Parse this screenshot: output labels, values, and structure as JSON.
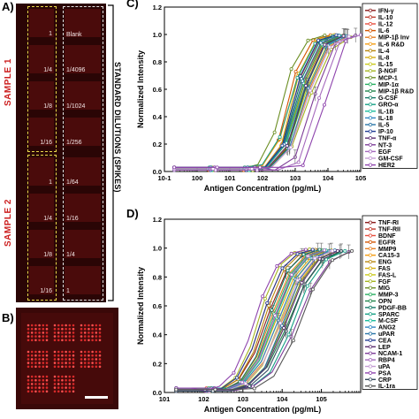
{
  "panels": {
    "a_label": "A)",
    "b_label": "B)",
    "c_label": "C)",
    "d_label": "D)"
  },
  "array_image": {
    "sample1": "SAMPLE 1",
    "sample2": "SAMPLE 2",
    "standard_dilutions": "STANDARD DILUTIONS (SPIKES)",
    "left_labels": [
      "1",
      "1/4",
      "1/8",
      "1/16",
      "1",
      "1/4",
      "1/8",
      "1/16"
    ],
    "right_labels": [
      "Blank",
      "1/4096",
      "1/1024",
      "1/256",
      "1/64",
      "1/16",
      "1/4",
      "1"
    ],
    "accent": "#cc1f1f"
  },
  "chart_data": [
    {
      "type": "line",
      "panel": "C",
      "xlabel": "Antigen Concentration (pg/mL)",
      "ylabel": "Normalized Intensity",
      "xscale": "log",
      "xlim": [
        0.1,
        100000
      ],
      "ylim": [
        0,
        1.2
      ],
      "xticks": [
        "10-1",
        "100",
        "101",
        "102",
        "103",
        "104",
        "105"
      ],
      "yticks": [
        "0.0",
        "0.2",
        "0.4",
        "0.6",
        "0.8",
        "1.0",
        "1.2"
      ],
      "legend_position": "right",
      "series": [
        {
          "name": "IFN-γ",
          "color": "#8b1a1a",
          "ec50": 1500,
          "slope": 1.6
        },
        {
          "name": "IL-10",
          "color": "#c0392b",
          "ec50": 900,
          "slope": 1.7
        },
        {
          "name": "IL-12",
          "color": "#e74c3c",
          "ec50": 1100,
          "slope": 1.5
        },
        {
          "name": "IL-6",
          "color": "#d35400",
          "ec50": 600,
          "slope": 1.8
        },
        {
          "name": "MIP-1β Inv",
          "color": "#e67e22",
          "ec50": 2000,
          "slope": 1.4
        },
        {
          "name": "IL-6 R&D",
          "color": "#f39c12",
          "ec50": 700,
          "slope": 1.6
        },
        {
          "name": "IL-4",
          "color": "#b8860b",
          "ec50": 1300,
          "slope": 1.5
        },
        {
          "name": "IL-8",
          "color": "#d4ac0d",
          "ec50": 800,
          "slope": 1.9
        },
        {
          "name": "IL-15",
          "color": "#c9c91a",
          "ec50": 1700,
          "slope": 1.4
        },
        {
          "name": "β-NGF",
          "color": "#a6b51f",
          "ec50": 2500,
          "slope": 1.3
        },
        {
          "name": "MCP-1",
          "color": "#6b8e23",
          "ec50": 400,
          "slope": 1.7
        },
        {
          "name": "MIP-1α",
          "color": "#27ae60",
          "ec50": 1200,
          "slope": 1.5
        },
        {
          "name": "MIP-1β R&D",
          "color": "#1e8449",
          "ec50": 1600,
          "slope": 1.6
        },
        {
          "name": "G-CSF",
          "color": "#117a65",
          "ec50": 1000,
          "slope": 1.7
        },
        {
          "name": "GRO-α",
          "color": "#16a085",
          "ec50": 700,
          "slope": 1.5
        },
        {
          "name": "IL-1B",
          "color": "#1abc9c",
          "ec50": 1400,
          "slope": 1.4
        },
        {
          "name": "IL-18",
          "color": "#2e86c1",
          "ec50": 1900,
          "slope": 1.5
        },
        {
          "name": "IL-5",
          "color": "#2874a6",
          "ec50": 1100,
          "slope": 1.6
        },
        {
          "name": "IP-10",
          "color": "#1f3a93",
          "ec50": 900,
          "slope": 1.8
        },
        {
          "name": "TNF-α",
          "color": "#5b2c6f",
          "ec50": 1500,
          "slope": 1.5
        },
        {
          "name": "NT-3",
          "color": "#7d3c98",
          "ec50": 3500,
          "slope": 1.7
        },
        {
          "name": "EGF",
          "color": "#a569bd",
          "ec50": 5000,
          "slope": 1.9
        },
        {
          "name": "GM-CSF",
          "color": "#c39bd3",
          "ec50": 2200,
          "slope": 1.4
        },
        {
          "name": "HER2",
          "color": "#8e44ad",
          "ec50": 8000,
          "slope": 2.0
        }
      ]
    },
    {
      "type": "line",
      "panel": "D",
      "xlabel": "Antigen Concentration (pg/mL)",
      "ylabel": "Normalized Intensity",
      "xscale": "log",
      "xlim": [
        1,
        100000
      ],
      "ylim": [
        0,
        1.2
      ],
      "xticks": [
        "101",
        "102",
        "103",
        "104",
        "105"
      ],
      "yticks": [
        "0.0",
        "0.2",
        "0.4",
        "0.6",
        "0.8",
        "1.0",
        "1.2"
      ],
      "legend_position": "right",
      "series": [
        {
          "name": "TNF-RI",
          "color": "#8b1a1a",
          "ec50": 400,
          "slope": 1.4
        },
        {
          "name": "TNF-RII",
          "color": "#c0392b",
          "ec50": 600,
          "slope": 1.3
        },
        {
          "name": "BDNF",
          "color": "#e74c3c",
          "ec50": 300,
          "slope": 1.5
        },
        {
          "name": "EGFR",
          "color": "#d35400",
          "ec50": 800,
          "slope": 1.3
        },
        {
          "name": "MMP9",
          "color": "#e67e22",
          "ec50": 500,
          "slope": 1.4
        },
        {
          "name": "CA15-3",
          "color": "#f39c12",
          "ec50": 1000,
          "slope": 1.2
        },
        {
          "name": "ENG",
          "color": "#b8860b",
          "ec50": 350,
          "slope": 1.5
        },
        {
          "name": "FAS",
          "color": "#d4ac0d",
          "ec50": 700,
          "slope": 1.3
        },
        {
          "name": "FAS-L",
          "color": "#c9c91a",
          "ec50": 900,
          "slope": 1.4
        },
        {
          "name": "FGF",
          "color": "#a6b51f",
          "ec50": 250,
          "slope": 1.6
        },
        {
          "name": "MIG",
          "color": "#6b8e23",
          "ec50": 1200,
          "slope": 1.3
        },
        {
          "name": "MMP-3",
          "color": "#27ae60",
          "ec50": 550,
          "slope": 1.4
        },
        {
          "name": "OPN",
          "color": "#1e8449",
          "ec50": 1500,
          "slope": 1.2
        },
        {
          "name": "PDGF-BB",
          "color": "#117a65",
          "ec50": 450,
          "slope": 1.5
        },
        {
          "name": "SPARC",
          "color": "#16a085",
          "ec50": 2000,
          "slope": 1.3
        },
        {
          "name": "M-CSF",
          "color": "#1abc9c",
          "ec50": 650,
          "slope": 1.4
        },
        {
          "name": "ANG2",
          "color": "#2e86c1",
          "ec50": 800,
          "slope": 1.3
        },
        {
          "name": "uPAR",
          "color": "#2874a6",
          "ec50": 1100,
          "slope": 1.4
        },
        {
          "name": "CEA",
          "color": "#1f3a93",
          "ec50": 300,
          "slope": 1.5
        },
        {
          "name": "LEP",
          "color": "#5b2c6f",
          "ec50": 1300,
          "slope": 1.3
        },
        {
          "name": "NCAM-1",
          "color": "#7d3c98",
          "ec50": 2500,
          "slope": 1.2
        },
        {
          "name": "RBP4",
          "color": "#a569bd",
          "ec50": 600,
          "slope": 1.4
        },
        {
          "name": "uPA",
          "color": "#c39bd3",
          "ec50": 950,
          "slope": 1.3
        },
        {
          "name": "PSA",
          "color": "#8e44ad",
          "ec50": 200,
          "slope": 1.5
        },
        {
          "name": "CRP",
          "color": "#34495e",
          "ec50": 1600,
          "slope": 1.3
        },
        {
          "name": "IL-1ra",
          "color": "#555555",
          "ec50": 3000,
          "slope": 1.3
        }
      ]
    }
  ]
}
